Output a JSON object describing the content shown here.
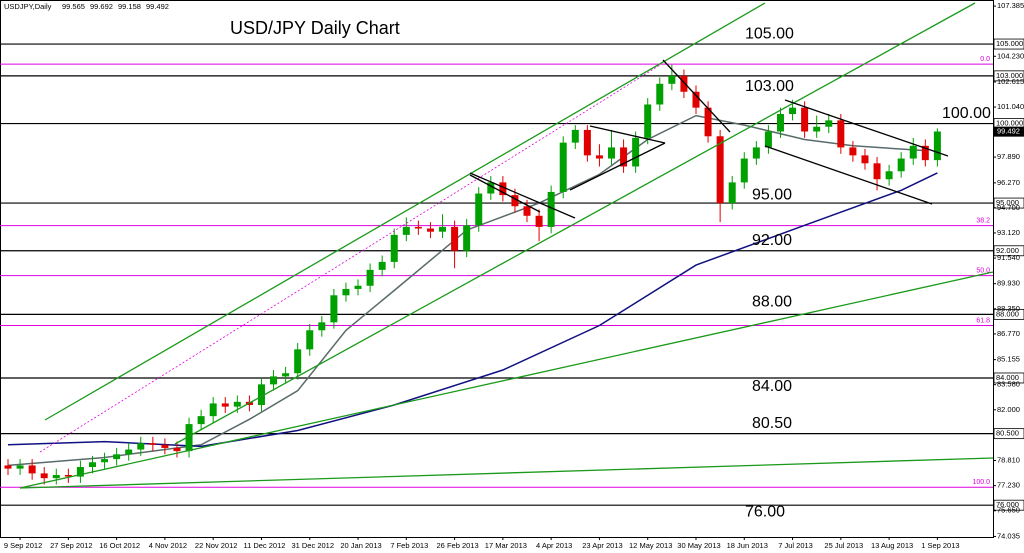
{
  "chart_data": {
    "type": "candlestick",
    "header": "USDJPY,Daily",
    "ohlc_readout": [
      99.565,
      99.692,
      99.158,
      99.492
    ],
    "title": "USD/JPY Daily Chart",
    "current": 99.492,
    "up_color": "#00a000",
    "down_color": "#e00000",
    "categories": [
      null,
      "9 Sep 2012",
      null,
      null,
      null,
      "27 Sep 2012",
      null,
      null,
      null,
      "16 Oct 2012",
      null,
      null,
      null,
      "4 Nov 2012",
      null,
      null,
      null,
      "22 Nov 2012",
      null,
      null,
      null,
      "11 Dec 2012",
      null,
      null,
      null,
      "31 Dec 2012",
      null,
      null,
      null,
      "20 Jan 2013",
      null,
      null,
      null,
      "7 Feb 2013",
      null,
      null,
      null,
      "26 Feb 2013",
      null,
      null,
      null,
      "17 Mar 2013",
      null,
      null,
      null,
      "4 Apr 2013",
      null,
      null,
      null,
      "23 Apr 2013",
      null,
      null,
      null,
      "12 May 2013",
      null,
      null,
      null,
      "30 May 2013",
      null,
      null,
      null,
      "18 Jun 2013",
      null,
      null,
      null,
      "7 Jul 2013",
      null,
      null,
      null,
      "25 Jul 2013",
      null,
      null,
      null,
      "13 Aug 2013",
      null,
      null,
      null,
      "1 Sep 2013"
    ],
    "open": [
      78.5,
      78.3,
      78.5,
      78.0,
      77.7,
      77.9,
      77.8,
      78.4,
      78.7,
      78.9,
      79.2,
      79.5,
      79.9,
      79.8,
      79.6,
      79.4,
      81.1,
      81.6,
      82.4,
      82.2,
      82.5,
      82.3,
      83.6,
      84.1,
      84.3,
      85.8,
      87.0,
      87.5,
      89.2,
      89.6,
      89.8,
      90.8,
      91.3,
      93.0,
      93.5,
      93.4,
      93.2,
      93.5,
      92.0,
      93.6,
      95.6,
      96.3,
      95.5,
      94.8,
      94.2,
      93.5,
      95.7,
      98.8,
      99.6,
      98.0,
      97.8,
      98.5,
      97.3,
      99.1,
      101.2,
      102.5,
      103.0,
      102.0,
      101.0,
      99.2,
      95.0,
      96.3,
      97.8,
      98.5,
      99.5,
      100.6,
      101.0,
      99.5,
      99.8,
      100.2,
      98.5,
      98.0,
      97.5,
      96.5,
      97.0,
      97.8,
      98.6,
      97.7
    ],
    "high": [
      78.9,
      78.9,
      78.9,
      78.4,
      78.3,
      78.3,
      78.8,
      79.1,
      79.3,
      79.6,
      79.9,
      80.3,
      80.3,
      80.2,
      80.0,
      81.5,
      82.0,
      82.8,
      82.8,
      82.9,
      82.9,
      84.0,
      84.5,
      84.7,
      86.2,
      87.4,
      87.9,
      89.6,
      90.0,
      90.2,
      91.2,
      91.7,
      93.4,
      94.1,
      93.9,
      93.8,
      94.3,
      93.9,
      94.0,
      96.0,
      96.7,
      96.7,
      95.9,
      95.2,
      94.6,
      96.1,
      99.2,
      99.9,
      99.9,
      98.7,
      99.6,
      99.0,
      99.5,
      101.6,
      102.9,
      103.7,
      103.4,
      102.4,
      101.4,
      99.6,
      96.7,
      98.2,
      98.9,
      99.9,
      101.0,
      101.5,
      101.4,
      100.5,
      100.6,
      100.6,
      98.9,
      98.4,
      97.9,
      97.4,
      98.2,
      99.1,
      99.0,
      99.7
    ],
    "low": [
      77.9,
      77.9,
      77.6,
      77.3,
      77.3,
      77.4,
      77.4,
      78.0,
      78.3,
      78.5,
      78.8,
      79.1,
      79.4,
      79.2,
      79.0,
      79.0,
      80.7,
      81.2,
      81.8,
      81.8,
      81.9,
      81.9,
      83.2,
      83.7,
      83.9,
      85.4,
      86.6,
      87.1,
      88.8,
      89.2,
      89.4,
      90.4,
      90.9,
      92.6,
      93.0,
      92.8,
      92.8,
      90.9,
      91.6,
      93.2,
      95.2,
      95.1,
      94.4,
      93.8,
      92.6,
      93.1,
      95.3,
      98.4,
      97.6,
      97.3,
      97.4,
      96.9,
      96.9,
      98.7,
      100.8,
      102.1,
      101.6,
      100.6,
      98.8,
      93.8,
      94.6,
      95.9,
      97.4,
      98.1,
      99.1,
      100.2,
      99.1,
      99.1,
      99.4,
      98.1,
      97.6,
      97.1,
      95.8,
      96.1,
      96.6,
      97.4,
      97.3,
      97.3
    ],
    "close": [
      78.3,
      78.5,
      78.0,
      77.7,
      77.9,
      77.8,
      78.4,
      78.7,
      78.9,
      79.2,
      79.5,
      79.9,
      79.8,
      79.6,
      79.4,
      81.1,
      81.6,
      82.4,
      82.2,
      82.5,
      82.3,
      83.6,
      84.1,
      84.3,
      85.8,
      87.0,
      87.5,
      89.2,
      89.6,
      89.8,
      90.8,
      91.3,
      93.0,
      93.5,
      93.4,
      93.2,
      93.5,
      92.0,
      93.6,
      95.6,
      96.3,
      95.5,
      94.8,
      94.2,
      93.5,
      95.7,
      98.8,
      99.6,
      98.0,
      97.8,
      98.5,
      97.3,
      99.1,
      101.2,
      102.5,
      103.0,
      102.0,
      101.0,
      99.2,
      95.0,
      96.3,
      97.8,
      98.5,
      99.5,
      100.6,
      101.0,
      99.5,
      99.8,
      100.2,
      98.5,
      98.0,
      97.5,
      96.5,
      97.0,
      97.8,
      98.6,
      97.7,
      99.5
    ],
    "ma_lines": [
      {
        "color": "#5a6a6a",
        "x": [
          0,
          8,
          16,
          20,
          24,
          28,
          32,
          38,
          44,
          49,
          53,
          57,
          61,
          66,
          70,
          76
        ],
        "values": [
          78.5,
          79.0,
          79.8,
          81.4,
          83.2,
          87.0,
          89.5,
          93.3,
          95.0,
          96.8,
          99.0,
          100.5,
          99.9,
          99.0,
          98.6,
          98.3
        ]
      },
      {
        "color": "#101080",
        "x": [
          0,
          8,
          16,
          24,
          32,
          41,
          49,
          57,
          66,
          74,
          77
        ],
        "values": [
          79.8,
          80.0,
          79.7,
          80.7,
          82.3,
          84.5,
          87.3,
          91.1,
          93.6,
          95.8,
          96.9
        ]
      }
    ],
    "levels": [
      {
        "value": 105,
        "label": "105.00",
        "axis_label": "105.000"
      },
      {
        "value": 103,
        "label": "103.00",
        "axis_label": "103.000"
      },
      {
        "value": 100,
        "label": "100.00",
        "axis_label": "100.000"
      },
      {
        "value": 95,
        "label": "95.00",
        "axis_label": "95.000"
      },
      {
        "value": 92,
        "label": "92.00",
        "axis_label": "92.000"
      },
      {
        "value": 88,
        "label": "88.00",
        "axis_label": "88.000"
      },
      {
        "value": 84,
        "label": "84.00",
        "axis_label": "84.000"
      },
      {
        "value": 80.5,
        "label": "80.50",
        "axis_label": "80.500"
      },
      {
        "value": 76,
        "label": "76.00",
        "axis_label": "76.000"
      }
    ],
    "fib_color": "#e000e0",
    "fib_levels": [
      {
        "value": 103.74,
        "label": "0.0"
      },
      {
        "value": 93.58,
        "label": "38.2"
      },
      {
        "value": 90.44,
        "label": "50.0"
      },
      {
        "value": 87.3,
        "label": "61.8"
      },
      {
        "value": 77.13,
        "label": "100.0"
      }
    ],
    "ylim": [
      74.0,
      107.77
    ],
    "yticks": [
      107.385,
      {
        "value": 104.23,
        "label": "104.230"
      },
      102.615,
      {
        "value": 101.04,
        "label": "101.040"
      },
      {
        "value": 97.89,
        "label": "97.890"
      },
      {
        "value": 96.27,
        "label": "96.270"
      },
      {
        "value": 94.7,
        "label": "94.700"
      },
      {
        "value": 93.12,
        "label": "93.120"
      },
      {
        "value": 91.54,
        "label": "91.540"
      },
      {
        "value": 89.93,
        "label": "89.930"
      },
      {
        "value": 88.35,
        "label": "88.350"
      },
      {
        "value": 86.77,
        "label": "86.770"
      },
      85.155,
      {
        "value": 83.58,
        "label": "83.580"
      },
      {
        "value": 82,
        "label": "82.000"
      },
      {
        "value": 78.81,
        "label": "78.810"
      },
      {
        "value": 77.23,
        "label": "77.230"
      },
      {
        "value": 75.65,
        "label": "75.650"
      },
      74.035
    ]
  }
}
